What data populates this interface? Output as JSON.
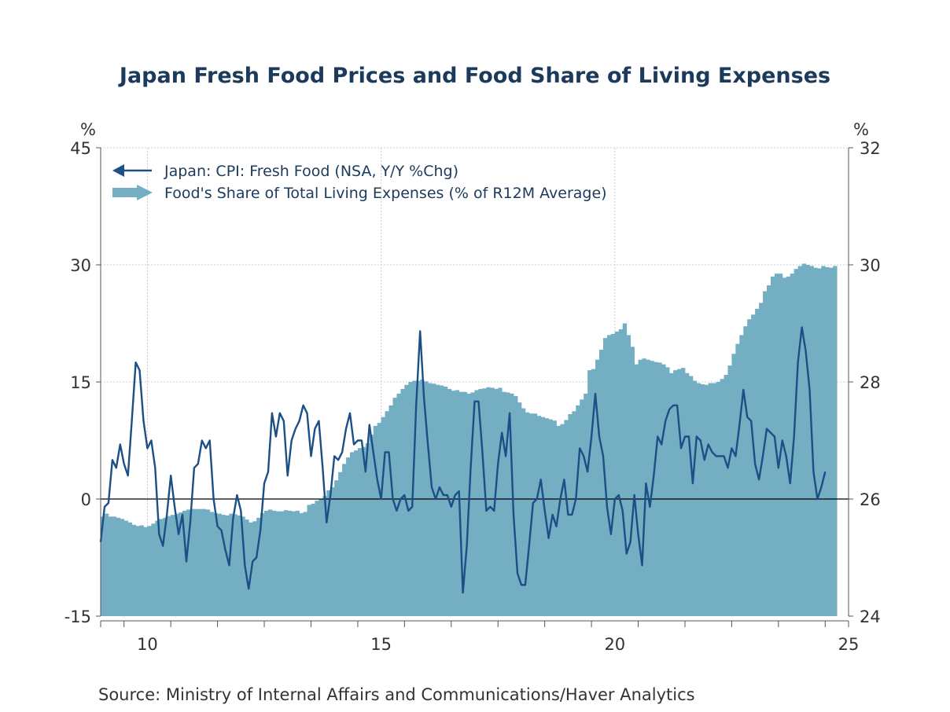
{
  "chart_data": {
    "type": "line+bar",
    "title": "Japan Fresh Food Prices and Food Share of Living Expenses",
    "source": "Source:  Ministry of Internal Affairs and Communications/Haver Analytics",
    "left_axis": {
      "unit": "%",
      "ylim": [
        -15,
        45
      ],
      "ticks": [
        -15,
        0,
        15,
        30,
        45
      ],
      "tick_labels": [
        "-15",
        "0",
        "15",
        "30",
        "45"
      ]
    },
    "right_axis": {
      "unit": "%",
      "ylim": [
        24,
        32
      ],
      "ticks": [
        24,
        26,
        28,
        30,
        32
      ],
      "tick_labels": [
        "24",
        "26",
        "28",
        "30",
        "32"
      ]
    },
    "x_axis": {
      "start": 2009.5,
      "end": 2025.5,
      "tick_labels": [
        "10",
        "15",
        "20",
        "25"
      ],
      "tick_years": [
        2010,
        2015,
        2020,
        2025
      ]
    },
    "grid": true,
    "legend_position": "top-left",
    "series": [
      {
        "name": "Japan: CPI: Fresh Food (NSA, Y/Y %Chg)",
        "axis": "left",
        "style": "line",
        "color": "#1b4f86",
        "x_start": 2009.5,
        "step": 0.0833333,
        "values": [
          -5.5,
          -1,
          -0.5,
          5,
          4,
          7,
          4.5,
          3,
          10,
          17.5,
          16.5,
          10,
          6.5,
          7.5,
          4,
          -4.5,
          -6,
          -2,
          3,
          -1,
          -4.5,
          -2,
          -8,
          -3,
          4,
          4.5,
          7.5,
          6.5,
          7.5,
          0,
          -3.5,
          -4,
          -6.5,
          -8.5,
          -2.5,
          0.5,
          -1.5,
          -8.5,
          -11.5,
          -8,
          -7.5,
          -4,
          2,
          3.5,
          11,
          8,
          11,
          10,
          3,
          7.5,
          9,
          10,
          12,
          11,
          5.5,
          9,
          10,
          4,
          -3,
          0.5,
          5.5,
          5,
          6,
          9,
          11,
          7,
          7.5,
          7.5,
          3.5,
          9.5,
          6,
          2.5,
          0,
          6,
          6,
          0,
          -1.5,
          0,
          0.5,
          -1.5,
          -1,
          12,
          21.5,
          13,
          7,
          1.5,
          0,
          1.5,
          0.5,
          0.5,
          -1,
          0.5,
          1,
          -12,
          -6,
          4,
          12.5,
          12.5,
          6,
          -1.5,
          -1,
          -1.5,
          4.5,
          8.5,
          5.5,
          11,
          -2,
          -9.5,
          -11,
          -11,
          -6,
          -0.5,
          0,
          2.5,
          -1.5,
          -5,
          -2,
          -3.5,
          0,
          2.5,
          -2,
          -2,
          0,
          6.5,
          5.5,
          3.5,
          8,
          13.5,
          8,
          5.5,
          -1,
          -4.5,
          0,
          0.5,
          -1.5,
          -7,
          -5.5,
          0.5,
          -4.5,
          -8.5,
          2,
          -1,
          3,
          8,
          7,
          10,
          11.5,
          12,
          12,
          6.5,
          8,
          8,
          2,
          8,
          7.5,
          5,
          7,
          6,
          5.5,
          5.5,
          5.5,
          4,
          6.5,
          5.5,
          9.5,
          14,
          10.5,
          10,
          4.5,
          2.5,
          5.5,
          9,
          8.5,
          8,
          4,
          7.5,
          5.5,
          2,
          8,
          17.5,
          22,
          19,
          14,
          3.5,
          0,
          1.5,
          3.5
        ]
      },
      {
        "name": "Food's Share of Total Living Expenses (% of R12M Average)",
        "axis": "right",
        "style": "bar",
        "color": "#74aec3",
        "x_start": 2009.5,
        "step": 0.0833333,
        "values": [
          25.7,
          25.75,
          25.7,
          25.7,
          25.68,
          25.66,
          25.63,
          25.6,
          25.56,
          25.54,
          25.55,
          25.52,
          25.54,
          25.58,
          25.63,
          25.66,
          25.68,
          25.71,
          25.73,
          25.75,
          25.77,
          25.8,
          25.82,
          25.83,
          25.83,
          25.83,
          25.83,
          25.82,
          25.78,
          25.76,
          25.75,
          25.73,
          25.72,
          25.75,
          25.74,
          25.72,
          25.7,
          25.65,
          25.6,
          25.62,
          25.68,
          25.76,
          25.8,
          25.82,
          25.8,
          25.79,
          25.79,
          25.81,
          25.8,
          25.79,
          25.8,
          25.76,
          25.78,
          25.9,
          25.92,
          25.97,
          26.0,
          26.05,
          26.15,
          26.2,
          26.32,
          26.46,
          26.6,
          26.71,
          26.8,
          26.83,
          26.87,
          26.89,
          26.95,
          27.1,
          27.25,
          27.3,
          27.4,
          27.5,
          27.6,
          27.73,
          27.8,
          27.88,
          27.95,
          28.0,
          28.02,
          28.02,
          28.04,
          28.01,
          27.98,
          27.97,
          27.95,
          27.94,
          27.92,
          27.88,
          27.85,
          27.86,
          27.83,
          27.83,
          27.8,
          27.82,
          27.86,
          27.88,
          27.89,
          27.91,
          27.9,
          27.88,
          27.9,
          27.83,
          27.82,
          27.8,
          27.76,
          27.65,
          27.55,
          27.48,
          27.46,
          27.46,
          27.42,
          27.4,
          27.38,
          27.36,
          27.34,
          27.25,
          27.28,
          27.35,
          27.45,
          27.5,
          27.6,
          27.7,
          27.8,
          28.2,
          28.22,
          28.38,
          28.55,
          28.75,
          28.8,
          28.82,
          28.86,
          28.9,
          29.0,
          28.8,
          28.6,
          28.3,
          28.38,
          28.4,
          28.38,
          28.36,
          28.34,
          28.33,
          28.3,
          28.25,
          28.15,
          28.2,
          28.22,
          28.24,
          28.15,
          28.1,
          28.02,
          27.98,
          27.96,
          27.95,
          27.98,
          27.98,
          28.0,
          28.05,
          28.12,
          28.28,
          28.48,
          28.65,
          28.8,
          28.95,
          29.07,
          29.15,
          29.25,
          29.35,
          29.55,
          29.65,
          29.8,
          29.85,
          29.85,
          29.78,
          29.8,
          29.85,
          29.93,
          29.98,
          30.02,
          30.0,
          29.98,
          29.95,
          29.94,
          29.98,
          29.96,
          29.95,
          29.98
        ]
      }
    ]
  }
}
